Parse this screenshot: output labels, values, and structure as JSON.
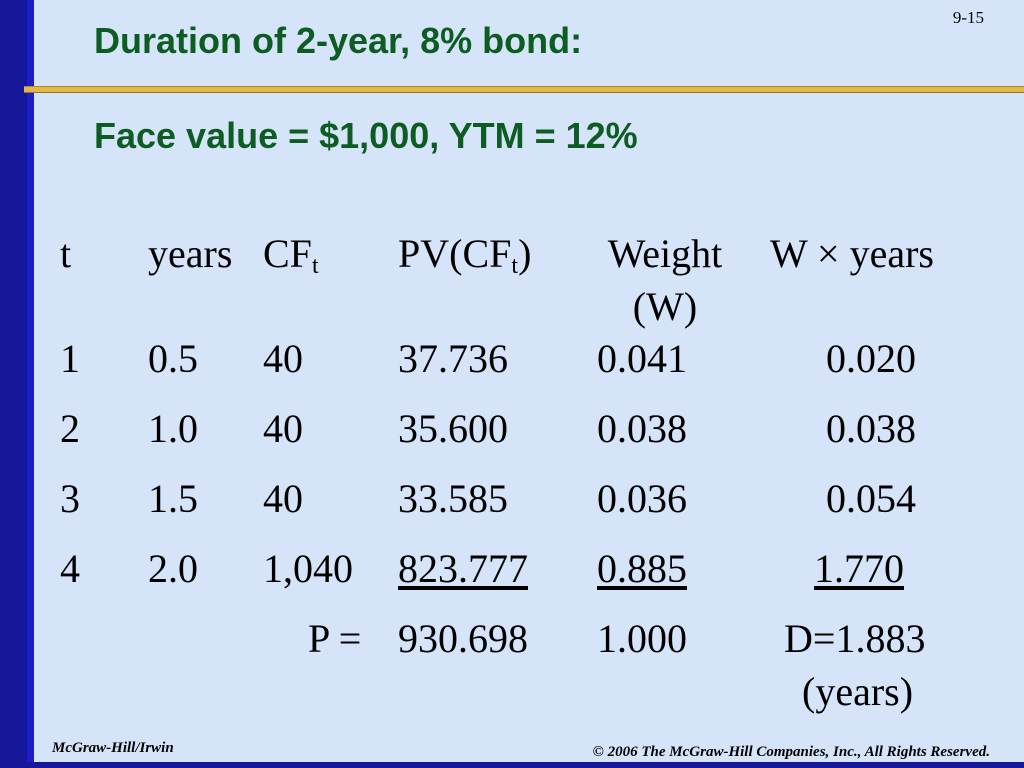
{
  "slide_number": "9-15",
  "title": "Duration of 2-year, 8% bond:",
  "subtitle": "Face value = $1,000, YTM = 12%",
  "table": {
    "headers": {
      "t": "t",
      "years": "years",
      "cf_main": "CF",
      "cf_sub": "t",
      "pv_main": "PV(CF",
      "pv_sub": "t",
      "pv_close": ")",
      "weight_line1": "Weight",
      "weight_line2": "(W)",
      "w_years": "W × years"
    },
    "rows": [
      {
        "t": "1",
        "years": "0.5",
        "cf": "40",
        "pv": "37.736",
        "weight": "0.041",
        "w_years": "0.020"
      },
      {
        "t": "2",
        "years": "1.0",
        "cf": "40",
        "pv": "35.600",
        "weight": "0.038",
        "w_years": "0.038"
      },
      {
        "t": "3",
        "years": "1.5",
        "cf": "40",
        "pv": "33.585",
        "weight": "0.036",
        "w_years": "0.054"
      },
      {
        "t": "4",
        "years": "2.0",
        "cf": "1,040",
        "pv": "823.777",
        "weight": "0.885",
        "w_years": "1.770"
      }
    ],
    "totals": {
      "p_label": "P =",
      "pv": "930.698",
      "weight": "1.000",
      "duration": "D=1.883",
      "duration_unit": "(years)"
    }
  },
  "footer": {
    "publisher": "McGraw-Hill/Irwin",
    "copyright": "© 2006 The McGraw-Hill Companies, Inc., All Rights Reserved."
  },
  "colors": {
    "background": "#d6e4fa",
    "left_bar": "#17179a",
    "divider": "#e2b84a",
    "title": "#0d5c22"
  }
}
